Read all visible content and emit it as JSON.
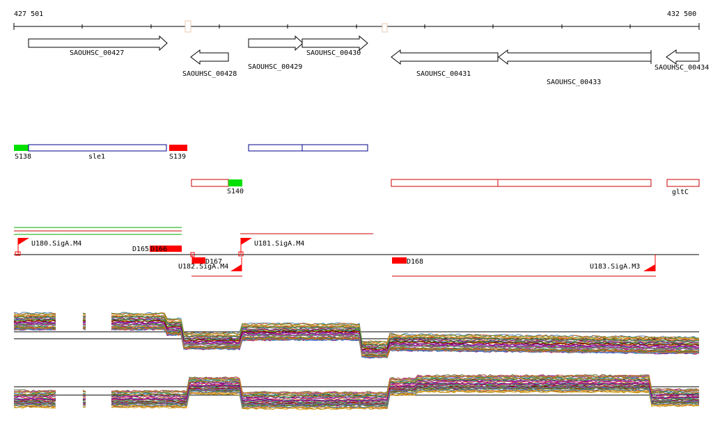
{
  "coordinates": {
    "start": "427 501",
    "end": "432 500"
  },
  "genes": [
    {
      "id": "SAOUHSC_00427",
      "dir": "right"
    },
    {
      "id": "SAOUHSC_00428",
      "dir": "left"
    },
    {
      "id": "SAOUHSC_00429",
      "dir": "right"
    },
    {
      "id": "SAOUHSC_00430",
      "dir": "right"
    },
    {
      "id": "SAOUHSC_00431",
      "dir": "left"
    },
    {
      "id": "SAOUHSC_00433",
      "dir": "left"
    },
    {
      "id": "SAOUHSC_00434",
      "dir": "left"
    }
  ],
  "segments_plus": [
    "S138",
    "sle1",
    "S139"
  ],
  "segments_minus": [
    "S140",
    "gltC"
  ],
  "promoters": [
    "U180.SigA.M4",
    "U181.SigA.M4",
    "U182.SigA.M4",
    "U183.SigA.M3"
  ],
  "downshifts": [
    "D165",
    "D166",
    "D167",
    "D168"
  ],
  "colors": {
    "gene_outline": "#000000",
    "plus_strand": "#00008b",
    "minus_strand": "#cc0000",
    "segment_green": "#00e000",
    "segment_red": "#ff0000",
    "promoter_red": "#ff0000",
    "green_line": "#00aa00"
  }
}
